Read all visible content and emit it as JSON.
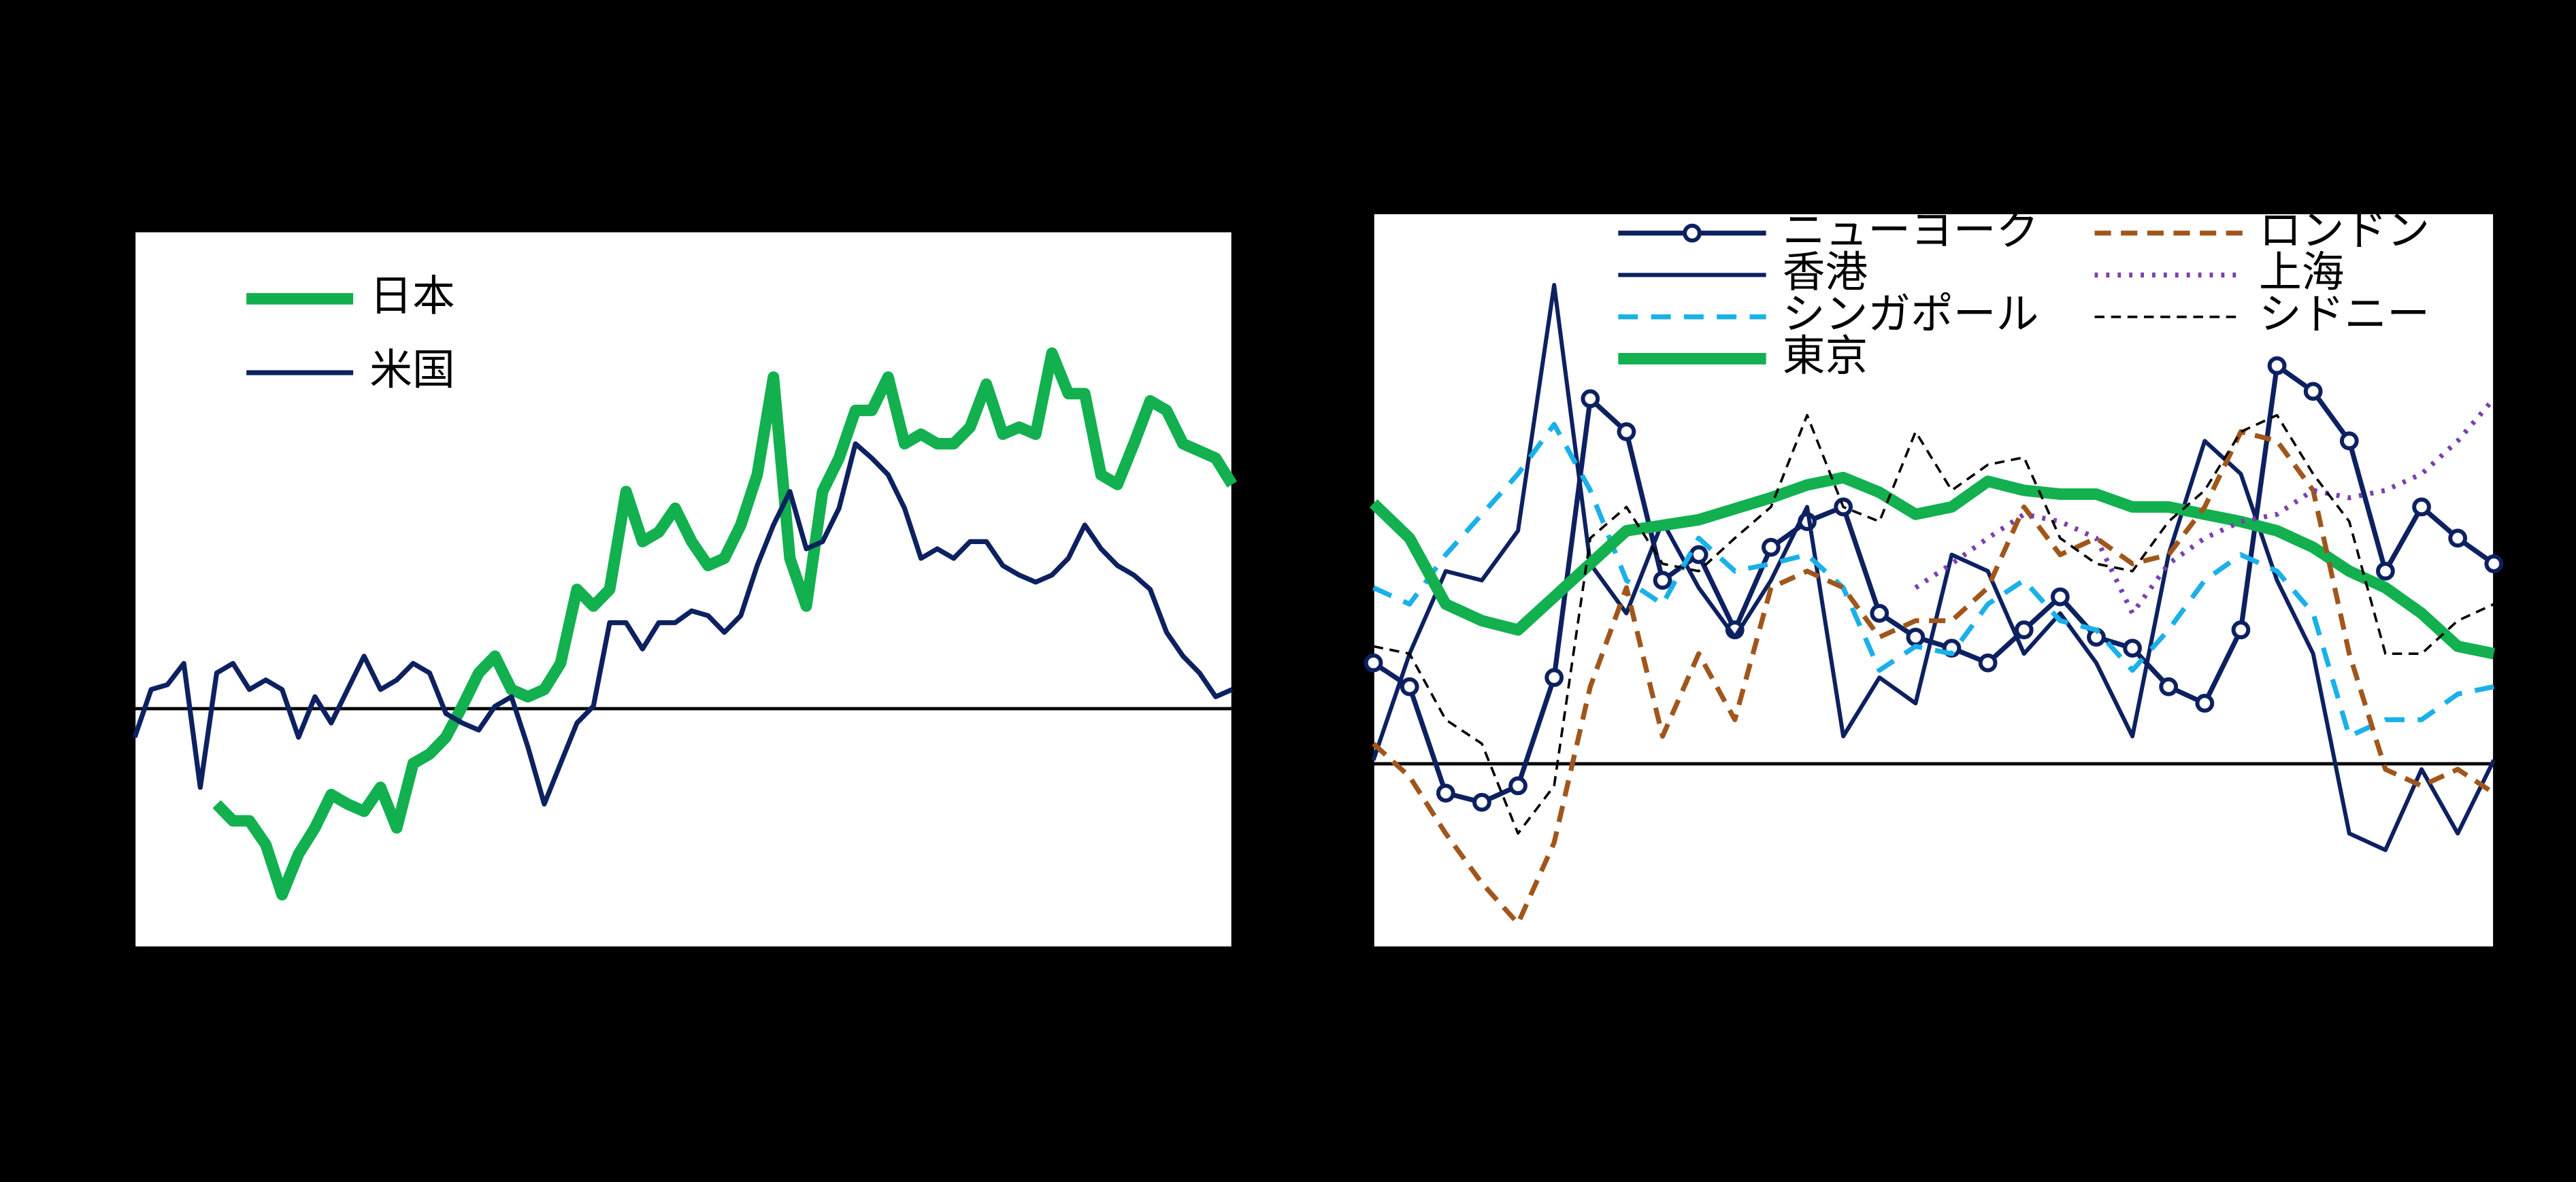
{
  "chart_data": [
    {
      "type": "line",
      "xlim": [
        0,
        67
      ],
      "ylim": [
        -10,
        20
      ],
      "yticks": [
        0
      ],
      "series": [
        {
          "name": "日本",
          "color": "#12b04f",
          "width": 7,
          "values": [
            null,
            null,
            null,
            null,
            null,
            -4.0,
            -4.7,
            -4.7,
            -5.7,
            -7.8,
            -6.1,
            -5.0,
            -3.6,
            -4.0,
            -4.3,
            -3.3,
            -5.0,
            -2.3,
            -1.9,
            -1.2,
            0.1,
            1.5,
            2.2,
            0.8,
            0.5,
            0.8,
            1.9,
            5.0,
            4.3,
            5.0,
            9.1,
            7.0,
            7.4,
            8.4,
            7.0,
            6.0,
            6.3,
            7.7,
            9.8,
            13.9,
            6.3,
            4.3,
            9.1,
            10.5,
            12.5,
            12.5,
            13.9,
            11.1,
            11.5,
            11.1,
            11.1,
            11.8,
            13.6,
            11.5,
            11.8,
            11.5,
            14.9,
            13.2,
            13.2,
            9.8,
            9.4,
            11.1,
            12.9,
            12.5,
            11.1,
            10.8,
            10.5,
            9.4
          ]
        },
        {
          "name": "米国",
          "color": "#0d2160",
          "width": 3,
          "values": [
            -1.2,
            0.8,
            1.0,
            1.9,
            -3.3,
            1.5,
            1.9,
            0.8,
            1.2,
            0.8,
            -1.2,
            0.5,
            -0.6,
            0.8,
            2.2,
            0.8,
            1.2,
            1.9,
            1.5,
            -0.2,
            -0.6,
            -0.9,
            0.1,
            0.5,
            -1.6,
            -4.0,
            -2.3,
            -0.6,
            0.1,
            3.6,
            3.6,
            2.5,
            3.6,
            3.6,
            4.1,
            3.9,
            3.2,
            3.9,
            6.0,
            7.7,
            9.1,
            6.7,
            7.0,
            8.4,
            11.1,
            10.5,
            9.8,
            8.4,
            6.3,
            6.7,
            6.3,
            7.0,
            7.0,
            6.0,
            5.6,
            5.3,
            5.6,
            6.3,
            7.7,
            6.7,
            6.0,
            5.6,
            5.0,
            3.2,
            2.2,
            1.5,
            0.5,
            0.8
          ]
        }
      ]
    },
    {
      "type": "line",
      "xlim": [
        0,
        31
      ],
      "ylim": [
        -10,
        30
      ],
      "yticks": [
        0
      ],
      "series": [
        {
          "name": "ニューヨーク",
          "color": "#0d2160",
          "width": 3,
          "marker": "circle",
          "values": [
            5.5,
            4.2,
            -1.6,
            -2.1,
            -1.2,
            4.7,
            19.9,
            18.1,
            10.0,
            11.4,
            7.3,
            11.8,
            13.2,
            14.0,
            8.2,
            6.9,
            6.3,
            5.5,
            7.3,
            9.1,
            6.9,
            6.3,
            4.2,
            3.3,
            7.3,
            21.7,
            20.3,
            17.6,
            10.5,
            14.0,
            12.3,
            10.9
          ]
        },
        {
          "name": "香港",
          "color": "#0d2160",
          "width": 2.5,
          "values": [
            0.2,
            6.0,
            10.5,
            10.0,
            12.7,
            26.1,
            10.9,
            8.2,
            13.2,
            9.6,
            6.9,
            10.0,
            14.0,
            1.5,
            4.7,
            3.3,
            11.4,
            10.5,
            6.0,
            8.2,
            5.5,
            1.5,
            11.4,
            17.6,
            15.8,
            10.0,
            6.0,
            -3.8,
            -4.7,
            -0.3,
            -3.8,
            0.2
          ]
        },
        {
          "name": "シンガポール",
          "color": "#1ab0e8",
          "width": 3,
          "dash": "12 8",
          "values": [
            9.6,
            8.7,
            11.4,
            13.6,
            15.8,
            18.5,
            14.9,
            10.0,
            8.7,
            12.3,
            10.5,
            10.9,
            11.4,
            9.6,
            5.1,
            6.4,
            6.0,
            8.7,
            10.0,
            7.8,
            7.3,
            5.1,
            7.3,
            10.0,
            11.4,
            10.5,
            8.2,
            1.5,
            2.4,
            2.4,
            3.8,
            4.2
          ]
        },
        {
          "name": "東京",
          "color": "#12b04f",
          "width": 7,
          "values": [
            14.2,
            12.3,
            8.7,
            7.8,
            7.3,
            9.1,
            10.9,
            12.7,
            13.0,
            13.3,
            13.9,
            14.5,
            15.2,
            15.6,
            14.8,
            13.6,
            14.0,
            15.4,
            14.9,
            14.7,
            14.7,
            14.0,
            14.0,
            13.6,
            13.2,
            12.7,
            11.8,
            10.5,
            9.6,
            8.2,
            6.4,
            6.0
          ]
        },
        {
          "name": "ロンドン",
          "color": "#a0561b",
          "width": 3,
          "dash": "10 6",
          "values": [
            1.1,
            -0.7,
            -3.8,
            -6.5,
            -8.7,
            -4.3,
            4.2,
            9.6,
            1.5,
            6.0,
            2.4,
            9.6,
            10.5,
            9.6,
            6.9,
            7.8,
            7.8,
            9.6,
            14.0,
            11.4,
            12.3,
            10.9,
            11.4,
            14.0,
            18.1,
            17.6,
            14.9,
            6.0,
            -0.3,
            -1.2,
            -0.3,
            -1.6
          ]
        },
        {
          "name": "上海",
          "color": "#7a3fb0",
          "width": 3,
          "dash": "2 5",
          "values": [
            null,
            null,
            null,
            null,
            null,
            null,
            null,
            null,
            null,
            null,
            null,
            null,
            null,
            null,
            null,
            9.6,
            10.9,
            12.3,
            13.6,
            13.2,
            12.3,
            8.2,
            10.9,
            12.3,
            13.2,
            13.6,
            14.9,
            14.5,
            14.9,
            15.8,
            17.6,
            19.9
          ]
        },
        {
          "name": "シドニー",
          "color": "#000000",
          "width": 1.5,
          "dash": "6 4",
          "values": [
            6.4,
            6.0,
            2.4,
            1.1,
            -3.8,
            -1.2,
            12.3,
            14.0,
            10.9,
            10.5,
            12.3,
            14.0,
            19.0,
            14.0,
            13.2,
            18.1,
            14.9,
            16.3,
            16.7,
            12.3,
            10.9,
            10.5,
            13.2,
            14.9,
            18.1,
            19.0,
            15.8,
            13.2,
            6.0,
            6.0,
            7.8,
            8.7
          ]
        }
      ]
    }
  ]
}
